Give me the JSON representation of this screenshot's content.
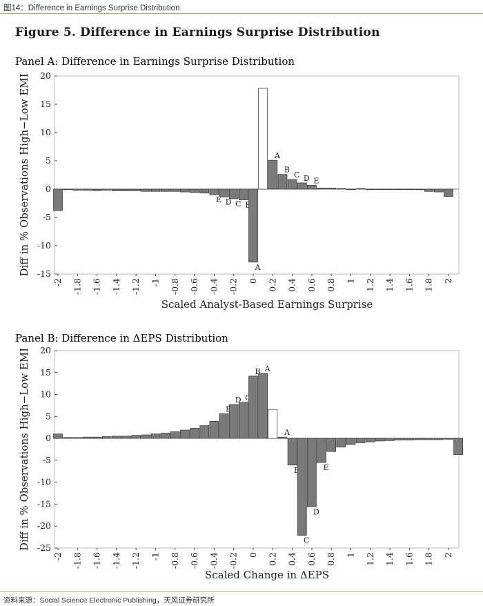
{
  "header": {
    "caption": "图14：Difference in Earnings Surprise Distribution"
  },
  "figure": {
    "title": "Figure 5. Difference in Earnings Surprise Distribution"
  },
  "footer": {
    "source": "资料来源：Social Science Electronic Publishing，天风证券研究所"
  },
  "chart_data": [
    {
      "type": "bar",
      "title": "Panel A: Difference in Earnings Surprise Distribution",
      "xlabel": "Scaled Analyst-Based Earnings Surprise",
      "ylabel": "Diff in % Observations High−Low EMI",
      "ylim": [
        -15,
        20
      ],
      "yticks": [
        20,
        15,
        10,
        5,
        0,
        -5,
        -10,
        -15
      ],
      "xticks": [
        "-2",
        "-1.8",
        "-1.6",
        "-1.4",
        "-1.2",
        "-1",
        "-0.8",
        "-0.6",
        "-0.4",
        "-0.2",
        "0",
        "0.2",
        "0.4",
        "0.6",
        "0.8",
        "1",
        "1.2",
        "1.4",
        "1.6",
        "1.8",
        "2"
      ],
      "bars": [
        {
          "x": -2.0,
          "value": -3.8
        },
        {
          "x": -1.9,
          "value": -0.1
        },
        {
          "x": -1.8,
          "value": -0.2
        },
        {
          "x": -1.7,
          "value": -0.2
        },
        {
          "x": -1.6,
          "value": -0.3
        },
        {
          "x": -1.5,
          "value": -0.2
        },
        {
          "x": -1.4,
          "value": -0.3
        },
        {
          "x": -1.3,
          "value": -0.3
        },
        {
          "x": -1.2,
          "value": -0.3
        },
        {
          "x": -1.1,
          "value": -0.4
        },
        {
          "x": -1.0,
          "value": -0.4
        },
        {
          "x": -0.9,
          "value": -0.4
        },
        {
          "x": -0.8,
          "value": -0.4
        },
        {
          "x": -0.7,
          "value": -0.5
        },
        {
          "x": -0.6,
          "value": -0.6
        },
        {
          "x": -0.5,
          "value": -0.7
        },
        {
          "x": -0.4,
          "value": -1.0,
          "label": "E"
        },
        {
          "x": -0.3,
          "value": -1.4,
          "label": "D"
        },
        {
          "x": -0.2,
          "value": -1.7,
          "label": "C"
        },
        {
          "x": -0.1,
          "value": -1.9,
          "label": "B"
        },
        {
          "x": 0.0,
          "value": -12.9,
          "label": "A"
        },
        {
          "x": 0.1,
          "value": 17.8,
          "hollow": true
        },
        {
          "x": 0.2,
          "value": 5.1,
          "label": "A"
        },
        {
          "x": 0.3,
          "value": 2.6,
          "label": "B"
        },
        {
          "x": 0.4,
          "value": 1.7,
          "label": "C"
        },
        {
          "x": 0.5,
          "value": 1.1,
          "label": "D"
        },
        {
          "x": 0.6,
          "value": 0.7,
          "label": "E"
        },
        {
          "x": 0.7,
          "value": 0.2
        },
        {
          "x": 0.8,
          "value": 0.2
        },
        {
          "x": 0.9,
          "value": 0.1
        },
        {
          "x": 1.0,
          "value": -0.1
        },
        {
          "x": 1.1,
          "value": 0.1
        },
        {
          "x": 1.2,
          "value": -0.1
        },
        {
          "x": 1.3,
          "value": -0.1
        },
        {
          "x": 1.4,
          "value": -0.1
        },
        {
          "x": 1.5,
          "value": -0.1
        },
        {
          "x": 1.6,
          "value": -0.1
        },
        {
          "x": 1.7,
          "value": -0.1
        },
        {
          "x": 1.8,
          "value": -0.4
        },
        {
          "x": 1.9,
          "value": -0.5
        },
        {
          "x": 2.0,
          "value": -1.3
        }
      ]
    },
    {
      "type": "bar",
      "title": "Panel B: Difference in ΔEPS Distribution",
      "xlabel": "Scaled Change in ΔEPS",
      "ylabel": "Diff in % Observations High−Low EMI",
      "ylim": [
        -25,
        20
      ],
      "yticks": [
        20,
        15,
        10,
        5,
        0,
        -5,
        -10,
        -15,
        -20,
        -25
      ],
      "xticks": [
        "-2",
        "-1.8",
        "-1.6",
        "-1.4",
        "-1.2",
        "-1",
        "-0.8",
        "-0.6",
        "-0.4",
        "-0.2",
        "0",
        "0.2",
        "0.4",
        "0.6",
        "0.8",
        "1",
        "1.2",
        "1.4",
        "1.6",
        "1.8",
        "2"
      ],
      "bars": [
        {
          "x": -2.0,
          "value": 1.0
        },
        {
          "x": -1.9,
          "value": 0.2
        },
        {
          "x": -1.8,
          "value": 0.2
        },
        {
          "x": -1.7,
          "value": 0.3
        },
        {
          "x": -1.6,
          "value": 0.3
        },
        {
          "x": -1.5,
          "value": 0.4
        },
        {
          "x": -1.4,
          "value": 0.5
        },
        {
          "x": -1.3,
          "value": 0.5
        },
        {
          "x": -1.2,
          "value": 0.7
        },
        {
          "x": -1.1,
          "value": 0.8
        },
        {
          "x": -1.0,
          "value": 1.0
        },
        {
          "x": -0.9,
          "value": 1.2
        },
        {
          "x": -0.8,
          "value": 1.5
        },
        {
          "x": -0.7,
          "value": 1.9
        },
        {
          "x": -0.6,
          "value": 2.3
        },
        {
          "x": -0.5,
          "value": 2.9
        },
        {
          "x": -0.4,
          "value": 3.9
        },
        {
          "x": -0.3,
          "value": 5.6,
          "label": "E"
        },
        {
          "x": -0.2,
          "value": 7.7,
          "label": "D"
        },
        {
          "x": -0.1,
          "value": 8.2,
          "label": "C"
        },
        {
          "x": 0.0,
          "value": 14.2,
          "label": "B"
        },
        {
          "x": 0.05,
          "value": 14.8,
          "label": "A",
          "note": "second tall bar"
        },
        {
          "x": 0.1,
          "value": 6.6,
          "hollow": true
        },
        {
          "x": 0.2,
          "value": 0.3,
          "label": "A"
        },
        {
          "x": 0.3,
          "value": -6.1,
          "label": "B"
        },
        {
          "x": 0.4,
          "value": -22.1,
          "label": "C"
        },
        {
          "x": 0.5,
          "value": -15.6,
          "label": "D"
        },
        {
          "x": 0.6,
          "value": -5.5,
          "label": "E"
        },
        {
          "x": 0.7,
          "value": -3.0
        },
        {
          "x": 0.8,
          "value": -2.0
        },
        {
          "x": 0.9,
          "value": -1.4
        },
        {
          "x": 1.0,
          "value": -1.0
        },
        {
          "x": 1.1,
          "value": -0.8
        },
        {
          "x": 1.2,
          "value": -0.6
        },
        {
          "x": 1.3,
          "value": -0.5
        },
        {
          "x": 1.4,
          "value": -0.4
        },
        {
          "x": 1.5,
          "value": -0.4
        },
        {
          "x": 1.6,
          "value": -0.3
        },
        {
          "x": 1.7,
          "value": -0.3
        },
        {
          "x": 1.8,
          "value": -0.3
        },
        {
          "x": 1.9,
          "value": -0.2
        },
        {
          "x": 2.0,
          "value": -3.7
        }
      ]
    }
  ]
}
